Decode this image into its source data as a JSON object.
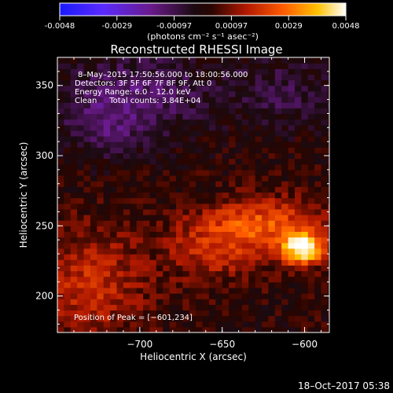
{
  "chart_data": {
    "type": "heatmap",
    "title": "Reconstructed RHESSI Image",
    "colorbar": {
      "ticks": [
        "-0.0048",
        "-0.0029",
        "-0.00097",
        "0.00097",
        "0.0029",
        "0.0048"
      ],
      "unit_label": "(photons cm⁻² s⁻¹ asec⁻²)",
      "range": [
        -0.0048,
        0.0048
      ],
      "colormap": "rhessi-heat (blue-purple-black-red-orange-yellow-white)"
    },
    "xlabel": "Heliocentric X (arcsec)",
    "ylabel": "Heliocentric Y (arcsec)",
    "xlim": [
      -750,
      -585
    ],
    "ylim": [
      174,
      370
    ],
    "xticks": [
      {
        "value": -700,
        "label": "−700"
      },
      {
        "value": -650,
        "label": "−650"
      },
      {
        "value": -600,
        "label": "−600"
      }
    ],
    "yticks": [
      {
        "value": 200,
        "label": "200"
      },
      {
        "value": 250,
        "label": "250"
      },
      {
        "value": 300,
        "label": "300"
      },
      {
        "value": 350,
        "label": "350"
      }
    ],
    "annotations": [
      "8–May–2015 17:50:56.000 to 18:00:56.000",
      "Detectors: 3F 5F 6F 7F 8F 9F, Att 0",
      "Energy Range: 6.0 – 12.0 keV",
      "Clean     Total counts: 3.84E+04"
    ],
    "peak_label": "Position of Peak = [−601,234]",
    "peak": {
      "x": -601,
      "y": 234
    },
    "grid": false,
    "legend": "none"
  },
  "footer": {
    "timestamp": "18–Oct–2017 05:38"
  }
}
